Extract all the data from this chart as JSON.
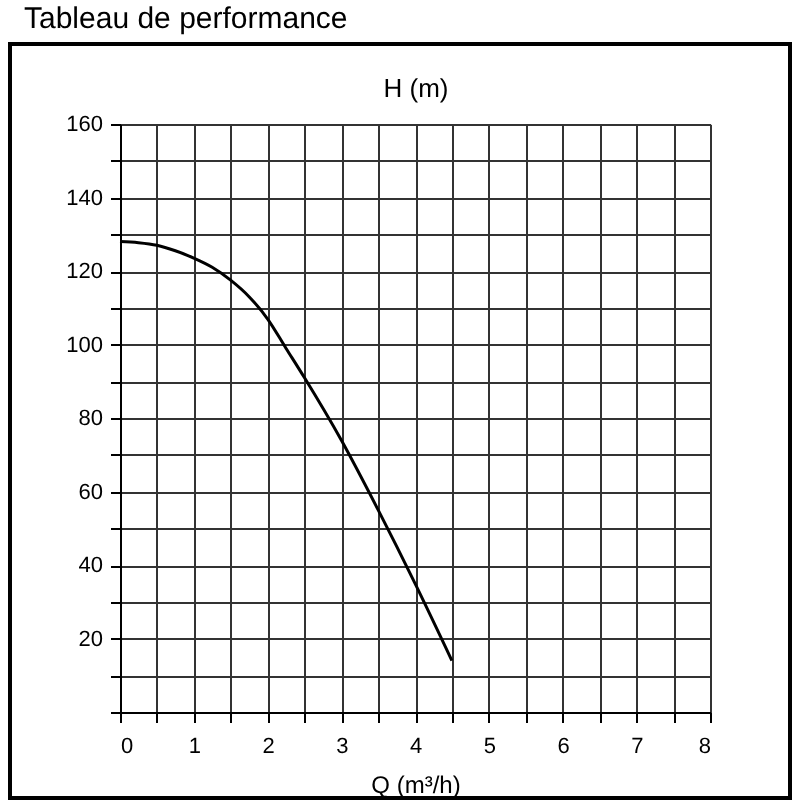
{
  "chart_data": {
    "type": "line",
    "title": "Tableau de performance",
    "xlabel": "Q (m³/h)",
    "ylabel": "H (m)",
    "x": [
      0,
      0.25,
      0.5,
      0.75,
      1.0,
      1.25,
      1.5,
      1.75,
      2.0,
      2.25,
      2.5,
      3.0,
      3.5,
      4.0,
      4.5
    ],
    "series": [
      {
        "color": "#000000",
        "values": [
          128,
          127.7,
          127,
          125.5,
          123.5,
          121,
          117.5,
          113,
          107,
          99,
          91,
          74,
          55,
          35,
          14
        ]
      }
    ],
    "xlim": [
      0,
      8
    ],
    "ylim": [
      0,
      160
    ],
    "xticks": [
      0,
      {
        "value": 0.5,
        "label": null
      },
      1,
      {
        "value": 1.5,
        "label": null
      },
      2,
      {
        "value": 2.5,
        "label": null
      },
      3,
      {
        "value": 3.5,
        "label": null
      },
      4,
      {
        "value": 4.5,
        "label": null
      },
      5,
      {
        "value": 5.5,
        "label": null
      },
      6,
      {
        "value": 6.5,
        "label": null
      },
      7,
      {
        "value": 7.5,
        "label": null
      },
      8
    ],
    "yticks": [
      {
        "value": 0,
        "label": null
      },
      {
        "value": 10,
        "label": null
      },
      20,
      {
        "value": 30,
        "label": null
      },
      40,
      {
        "value": 50,
        "label": null
      },
      60,
      {
        "value": 70,
        "label": null
      },
      80,
      {
        "value": 90,
        "label": null
      },
      100,
      {
        "value": 110,
        "label": null
      },
      120,
      {
        "value": 130,
        "label": null
      },
      140,
      {
        "value": 150,
        "label": null
      },
      160
    ],
    "grid": true,
    "line_style": "solid"
  }
}
